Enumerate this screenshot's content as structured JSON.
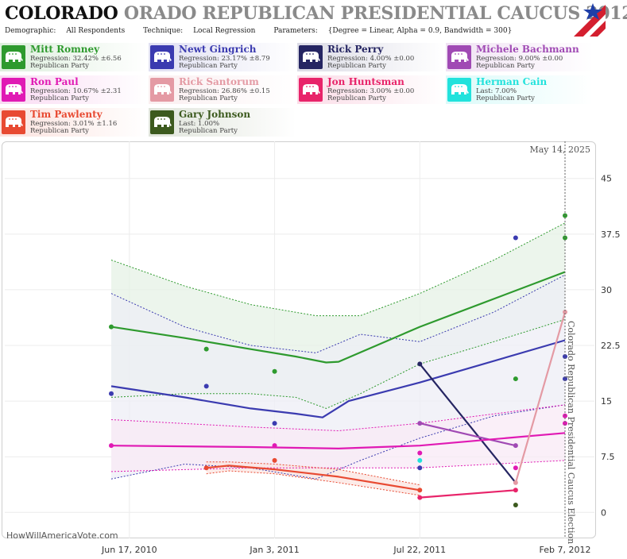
{
  "header": {
    "title_state": "COLORADO",
    "title_rest": "ORADO REPUBLICAN PRESIDENTIAL CAUCUS 2012",
    "demographic_label": "Demographic:",
    "demographic_value": "All Respondents",
    "technique_label": "Technique:",
    "technique_value": "Local Regression",
    "parameters_label": "Parameters:",
    "parameters_value": "{Degree = Linear, Alpha = 0.9, Bandwidth = 300}"
  },
  "candidates": [
    {
      "name": "Mitt Romney",
      "stat": "Regression: 32.42% ±6.56",
      "party": "Republican Party",
      "color": "#2e9a2e"
    },
    {
      "name": "Newt Gingrich",
      "stat": "Regression: 23.17% ±8.79",
      "party": "Republican Party",
      "color": "#3b3bb0"
    },
    {
      "name": "Rick Perry",
      "stat": "Regression: 4.00% ±0.00",
      "party": "Republican Party",
      "color": "#252562"
    },
    {
      "name": "Michele Bachmann",
      "stat": "Regression: 9.00% ±0.00",
      "party": "Republican Party",
      "color": "#a04ab4"
    },
    {
      "name": "Ron Paul",
      "stat": "Regression: 10.67% ±2.31",
      "party": "Republican Party",
      "color": "#e01ab4"
    },
    {
      "name": "Rick Santorum",
      "stat": "Regression: 26.86% ±0.15",
      "party": "Republican Party",
      "color": "#e49aa4"
    },
    {
      "name": "Jon Huntsman",
      "stat": "Regression: 3.00% ±0.00",
      "party": "Republican Party",
      "color": "#e8246a"
    },
    {
      "name": "Herman Cain",
      "stat": "Last: 7.00%",
      "party": "Republican Party",
      "color": "#22e2dc"
    },
    {
      "name": "Tim Pawlenty",
      "stat": "Regression: 3.01% ±1.16",
      "party": "Republican Party",
      "color": "#e84a32"
    },
    {
      "name": "Gary Johnson",
      "stat": "Last: 1.00%",
      "party": "Republican Party",
      "color": "#3c5a1e"
    }
  ],
  "chart_data": {
    "type": "line",
    "date_label": "May 14, 2025",
    "election_label": "Colorado Republican Presidential Caucus Election",
    "election_date": "2012-02-07",
    "x_tick_labels": [
      "Jun 17, 2010",
      "Jan 3, 2011",
      "Jul 22, 2011",
      "Feb 7, 2012"
    ],
    "x_tick_dates": [
      "2010-06-17",
      "2011-01-03",
      "2011-07-22",
      "2012-02-07"
    ],
    "xlim": [
      "2010-05-23",
      "2012-02-07"
    ],
    "y_ticks": [
      0,
      7.5,
      15,
      22.5,
      30,
      37.5,
      45
    ],
    "y_tick_labels": [
      "0",
      "7.5",
      "15",
      "22.5",
      "30",
      "37.5",
      "45"
    ],
    "ylim": [
      -3.5,
      50
    ],
    "credit": "HowWillAmericaVote.com",
    "series": [
      {
        "name": "Mitt Romney",
        "color": "#2e9a2e",
        "band_color": "#e6f2e6",
        "trend": [
          [
            "2010-05-23",
            25
          ],
          [
            "2010-09-01",
            23.5
          ],
          [
            "2010-12-01",
            22
          ],
          [
            "2011-02-01",
            21
          ],
          [
            "2011-03-15",
            20.2
          ],
          [
            "2011-04-01",
            20.3
          ],
          [
            "2011-07-22",
            25
          ],
          [
            "2012-02-07",
            32.4
          ]
        ],
        "upper": [
          [
            "2010-05-23",
            34
          ],
          [
            "2010-09-01",
            30.5
          ],
          [
            "2010-12-01",
            28
          ],
          [
            "2011-03-01",
            26.5
          ],
          [
            "2011-05-01",
            26.5
          ],
          [
            "2011-07-22",
            29.5
          ],
          [
            "2011-11-01",
            34
          ],
          [
            "2012-02-07",
            39
          ]
        ],
        "lower": [
          [
            "2010-05-23",
            15.5
          ],
          [
            "2010-09-01",
            16
          ],
          [
            "2010-12-01",
            16
          ],
          [
            "2011-02-01",
            15.5
          ],
          [
            "2011-03-15",
            14
          ],
          [
            "2011-05-01",
            16
          ],
          [
            "2011-07-22",
            20
          ],
          [
            "2011-11-01",
            23
          ],
          [
            "2012-02-07",
            26
          ]
        ],
        "points": [
          [
            "2010-05-23",
            25
          ],
          [
            "2010-10-01",
            22
          ],
          [
            "2011-01-03",
            19
          ],
          [
            "2011-12-01",
            18
          ],
          [
            "2012-02-07",
            40
          ],
          [
            "2012-02-07",
            37
          ]
        ]
      },
      {
        "name": "Newt Gingrich",
        "color": "#3b3bb0",
        "band_color": "#eeeef6",
        "trend": [
          [
            "2010-05-23",
            17
          ],
          [
            "2010-09-01",
            15.5
          ],
          [
            "2010-12-01",
            14
          ],
          [
            "2011-02-01",
            13.3
          ],
          [
            "2011-03-10",
            12.8
          ],
          [
            "2011-04-15",
            15
          ],
          [
            "2011-07-22",
            17.5
          ],
          [
            "2012-02-07",
            23.2
          ]
        ],
        "upper": [
          [
            "2010-05-23",
            29.5
          ],
          [
            "2010-09-01",
            25
          ],
          [
            "2010-12-01",
            22.5
          ],
          [
            "2011-03-01",
            21.5
          ],
          [
            "2011-05-01",
            24
          ],
          [
            "2011-07-22",
            23
          ],
          [
            "2011-11-01",
            27
          ],
          [
            "2012-02-07",
            32
          ]
        ],
        "lower": [
          [
            "2010-05-23",
            4.5
          ],
          [
            "2010-09-01",
            6.5
          ],
          [
            "2010-12-01",
            6
          ],
          [
            "2011-03-01",
            4.5
          ],
          [
            "2011-05-01",
            7
          ],
          [
            "2011-07-22",
            10
          ],
          [
            "2011-11-01",
            13
          ],
          [
            "2012-02-07",
            14.5
          ]
        ],
        "points": [
          [
            "2010-05-23",
            16
          ],
          [
            "2010-10-01",
            17
          ],
          [
            "2011-01-03",
            12
          ],
          [
            "2011-07-22",
            6
          ],
          [
            "2011-12-01",
            37
          ],
          [
            "2012-02-07",
            21
          ],
          [
            "2012-02-07",
            18
          ]
        ]
      },
      {
        "name": "Rick Perry",
        "color": "#252562",
        "trend": [
          [
            "2011-07-22",
            20
          ],
          [
            "2011-12-01",
            4
          ]
        ],
        "points": [
          [
            "2011-07-22",
            20
          ]
        ]
      },
      {
        "name": "Michele Bachmann",
        "color": "#a04ab4",
        "trend": [
          [
            "2011-07-22",
            12
          ],
          [
            "2011-12-01",
            9
          ]
        ],
        "points": [
          [
            "2011-07-22",
            12
          ],
          [
            "2011-12-01",
            9
          ]
        ]
      },
      {
        "name": "Ron Paul",
        "color": "#e01ab4",
        "band_color": "#f8eaf5",
        "trend": [
          [
            "2010-05-23",
            9
          ],
          [
            "2010-12-01",
            8.8
          ],
          [
            "2011-04-01",
            8.6
          ],
          [
            "2011-07-22",
            9
          ],
          [
            "2012-02-07",
            10.7
          ]
        ],
        "upper": [
          [
            "2010-05-23",
            12.5
          ],
          [
            "2010-12-01",
            11.5
          ],
          [
            "2011-04-01",
            11
          ],
          [
            "2011-07-22",
            12
          ],
          [
            "2012-02-07",
            14.5
          ]
        ],
        "lower": [
          [
            "2010-05-23",
            5.5
          ],
          [
            "2010-12-01",
            6
          ],
          [
            "2011-04-01",
            6
          ],
          [
            "2011-07-22",
            6
          ],
          [
            "2012-02-07",
            7
          ]
        ],
        "points": [
          [
            "2010-05-23",
            9
          ],
          [
            "2011-01-03",
            9
          ],
          [
            "2011-07-22",
            8
          ],
          [
            "2011-12-01",
            6
          ],
          [
            "2012-02-07",
            13
          ],
          [
            "2012-02-07",
            12
          ]
        ]
      },
      {
        "name": "Rick Santorum",
        "color": "#e49aa4",
        "trend": [
          [
            "2011-12-01",
            4
          ],
          [
            "2012-02-07",
            27
          ]
        ],
        "points": [
          [
            "2011-12-01",
            4
          ],
          [
            "2012-02-07",
            27
          ]
        ]
      },
      {
        "name": "Jon Huntsman",
        "color": "#e8246a",
        "trend": [
          [
            "2011-07-22",
            2
          ],
          [
            "2011-12-01",
            3
          ]
        ],
        "points": [
          [
            "2011-07-22",
            2
          ],
          [
            "2011-12-01",
            3
          ]
        ]
      },
      {
        "name": "Herman Cain",
        "color": "#22e2dc",
        "trend": [],
        "points": [
          [
            "2011-07-22",
            7
          ]
        ]
      },
      {
        "name": "Tim Pawlenty",
        "color": "#e84a32",
        "band_color": "#fbe4e0",
        "trend": [
          [
            "2010-10-01",
            6
          ],
          [
            "2010-11-01",
            6.3
          ],
          [
            "2011-01-03",
            5.8
          ],
          [
            "2011-04-01",
            4.8
          ],
          [
            "2011-07-22",
            3
          ]
        ],
        "upper": [
          [
            "2010-10-01",
            6.8
          ],
          [
            "2010-11-01",
            6.8
          ],
          [
            "2011-01-03",
            6.5
          ],
          [
            "2011-04-01",
            5.8
          ],
          [
            "2011-07-22",
            3.7
          ]
        ],
        "lower": [
          [
            "2010-10-01",
            5.2
          ],
          [
            "2010-11-01",
            5.6
          ],
          [
            "2011-01-03",
            5.2
          ],
          [
            "2011-04-01",
            4
          ],
          [
            "2011-07-22",
            2.3
          ]
        ],
        "points": [
          [
            "2010-10-01",
            6
          ],
          [
            "2011-01-03",
            7
          ],
          [
            "2011-07-22",
            3
          ]
        ]
      },
      {
        "name": "Gary Johnson",
        "color": "#3c5a1e",
        "trend": [],
        "points": [
          [
            "2011-12-01",
            1
          ]
        ]
      }
    ]
  }
}
